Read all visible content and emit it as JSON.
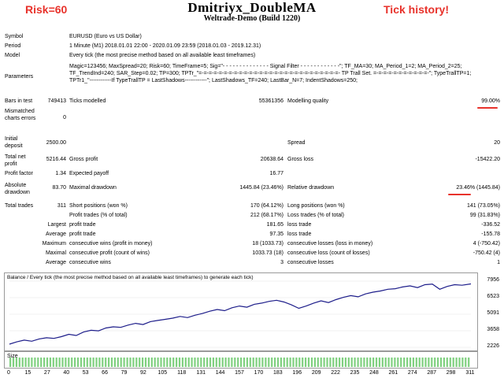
{
  "header": {
    "title": "Dmitriyx_DoubleMA",
    "subtitle": "Weltrade-Demo (Build 1220)",
    "risk_note": "Risk=60",
    "tick_note": "Tick history!"
  },
  "info": {
    "symbol_label": "Symbol",
    "symbol_value": "EURUSD (Euro vs US Dollar)",
    "period_label": "Period",
    "period_value": "1 Minute (M1) 2018.01.01 22:00 - 2020.01.09 23:59 (2018.01.03 - 2019.12.31)",
    "model_label": "Model",
    "model_value": "Every tick (the most precise method based on all available least timeframes)",
    "parameters_label": "Parameters",
    "parameters_value": "Magic=123456; MaxSpread=20; Risk=60; TimeFrame=5; Sig=\"- - - - - - - - - - - - - - Signal Filter - - - - - - - - - - - -\"; TF_MA=30; MA_Period_1=2; MA_Period_2=25; TF_TrendInd=240; SAR_Step=0.02; TP=300; TPTr_\"=-=-=-=-=-=-=-=-=-=-=-=-=-=-=-=-=-=-=-=-=-=-=-=-=-=-=-=- TP Trall Set. =-=-=-=-=-=-=-=-=-=-=-\"; TypeTrallTP=1; TPTr1_\"------------If TypeTrallTP = LastShadows------------\"; LastShadows_TF=240; LastBar_N=7; IndentShadows=250;"
  },
  "stats": {
    "bars_label": "Bars in test",
    "bars_value": "749413",
    "ticks_label": "Ticks modelled",
    "ticks_value": "55361356",
    "quality_label": "Modelling quality",
    "quality_value": "99.00%",
    "mismatch_label": "Mismatched charts errors",
    "mismatch_value": "0",
    "deposit_label": "Initial deposit",
    "deposit_value": "2500.00",
    "spread_label": "Spread",
    "spread_value": "20",
    "net_label": "Total net profit",
    "net_value": "5216.44",
    "gross_profit_label": "Gross profit",
    "gross_profit_value": "20638.64",
    "gross_loss_label": "Gross loss",
    "gross_loss_value": "-15422.20",
    "pf_label": "Profit factor",
    "pf_value": "1.34",
    "payoff_label": "Expected payoff",
    "payoff_value": "16.77",
    "absdd_label": "Absolute drawdown",
    "absdd_value": "83.70",
    "maxdd_label": "Maximal drawdown",
    "maxdd_value": "1445.84 (23.46%)",
    "reldd_label": "Relative drawdown",
    "reldd_value": "23.46% (1445.84)",
    "trades_label": "Total trades",
    "trades_value": "311",
    "short_label": "Short positions (won %)",
    "short_value": "170 (64.12%)",
    "long_label": "Long positions (won %)",
    "long_value": "141 (73.05%)",
    "profit_trades_label": "Profit trades (% of total)",
    "profit_trades_value": "212 (68.17%)",
    "loss_trades_label": "Loss trades (% of total)",
    "loss_trades_value": "99 (31.83%)",
    "largest_label": "Largest",
    "largest_profit_label": "profit trade",
    "largest_profit_value": "181.65",
    "largest_loss_label": "loss trade",
    "largest_loss_value": "-336.52",
    "average_label": "Average",
    "average_profit_label": "profit trade",
    "average_profit_value": "97.35",
    "average_loss_label": "loss trade",
    "average_loss_value": "-155.78",
    "maximum_label": "Maximum",
    "max_cw_label": "consecutive wins (profit in money)",
    "max_cw_value": "18 (1033.73)",
    "max_cl_label": "consecutive losses (loss in money)",
    "max_cl_value": "4 (-750.42)",
    "maximal_label": "Maximal",
    "maxl_cp_label": "consecutive profit (count of wins)",
    "maxl_cp_value": "1033.73 (18)",
    "maxl_cl_label": "consecutive loss (count of losses)",
    "maxl_cl_value": "-750.42 (4)",
    "avg_label": "Average",
    "avg_cw_label": "consecutive wins",
    "avg_cw_value": "3",
    "avg_cl_label": "consecutive losses",
    "avg_cl_value": "1"
  },
  "chart_data": {
    "type": "line",
    "title": "Balance / Every tick (the most precise method based on all available least timeframes) to generate each tick)",
    "size_label": "Size",
    "ylim": [
      2226,
      7956
    ],
    "y_ticks": [
      "7956",
      "6523",
      "5091",
      "3658",
      "2226"
    ],
    "x_ticks": [
      "0",
      "15",
      "27",
      "40",
      "53",
      "66",
      "79",
      "92",
      "105",
      "118",
      "131",
      "144",
      "157",
      "170",
      "183",
      "196",
      "209",
      "222",
      "235",
      "248",
      "261",
      "274",
      "287",
      "298",
      "311"
    ],
    "x": [
      0,
      5,
      10,
      15,
      20,
      25,
      30,
      35,
      40,
      45,
      50,
      55,
      60,
      65,
      70,
      75,
      80,
      85,
      90,
      95,
      100,
      105,
      110,
      115,
      120,
      125,
      130,
      135,
      140,
      145,
      150,
      155,
      160,
      165,
      170,
      175,
      180,
      185,
      190,
      195,
      200,
      205,
      210,
      215,
      220,
      225,
      230,
      235,
      240,
      245,
      250,
      255,
      260,
      265,
      270,
      275,
      280,
      285,
      290,
      295,
      300,
      305,
      311
    ],
    "series": [
      {
        "name": "Balance",
        "color": "#1d1d8a",
        "values": [
          2500,
          2700,
          2850,
          2750,
          2950,
          3050,
          3000,
          3150,
          3350,
          3250,
          3550,
          3700,
          3650,
          3900,
          4000,
          3950,
          4150,
          4300,
          4200,
          4450,
          4550,
          4650,
          4750,
          4900,
          4800,
          5000,
          5150,
          5350,
          5500,
          5400,
          5650,
          5800,
          5700,
          5950,
          6050,
          6200,
          6300,
          6150,
          5900,
          5600,
          5800,
          6050,
          6250,
          6100,
          6350,
          6550,
          6700,
          6600,
          6850,
          7000,
          7100,
          7250,
          7300,
          7450,
          7550,
          7400,
          7650,
          7700,
          7250,
          7500,
          7650,
          7600,
          7716
        ]
      }
    ],
    "size_bars": "uniform"
  },
  "colors": {
    "accent_red": "#e8322b",
    "balance_line": "#1d1d8a",
    "size_bar": "#7fd07f"
  }
}
